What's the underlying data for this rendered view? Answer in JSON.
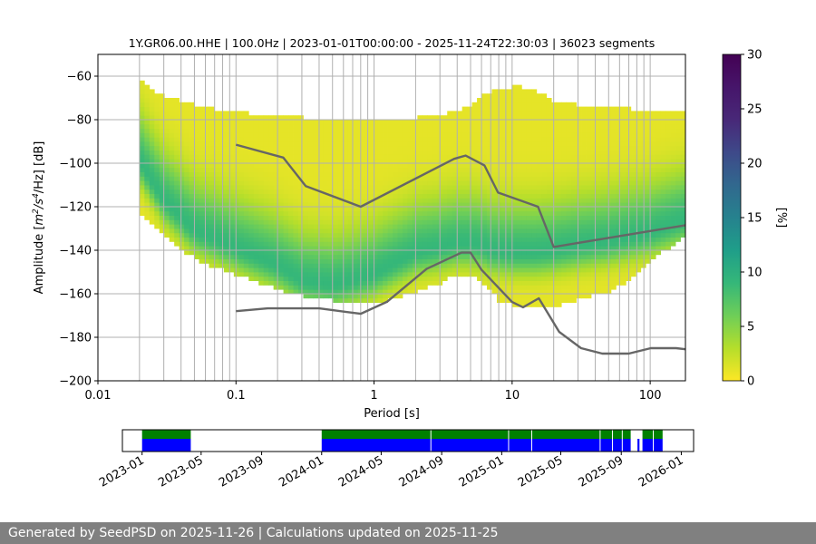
{
  "footer": {
    "text": "Generated by SeedPSD on 2025-11-26 | Calculations updated on 2025-11-25"
  },
  "chart_data": [
    {
      "type": "heatmap",
      "title": "1Y.GR06.00.HHE | 100.0Hz | 2023-01-01T00:00:00 - 2025-11-24T22:30:03 | 36023 segments",
      "xlabel": "Period [s]",
      "ylabel_parts": {
        "prefix": "Amplitude [",
        "m": "m",
        "m_sup": "2",
        "mid": "/s",
        "s_sup": "4",
        "suffix": "/Hz] [dB]"
      },
      "xscale": "log",
      "xlim": [
        0.01,
        180
      ],
      "ylim": [
        -200,
        -50
      ],
      "x_ticks": [
        {
          "value": 0.01,
          "label": "0.01"
        },
        {
          "value": 0.1,
          "label": "0.1"
        },
        {
          "value": 1,
          "label": "1"
        },
        {
          "value": 10,
          "label": "10"
        },
        {
          "value": 100,
          "label": "100"
        }
      ],
      "y_ticks": [
        {
          "value": -60,
          "label": "−60"
        },
        {
          "value": -80,
          "label": "−80"
        },
        {
          "value": -100,
          "label": "−100"
        },
        {
          "value": -120,
          "label": "−120"
        },
        {
          "value": -140,
          "label": "−140"
        },
        {
          "value": -160,
          "label": "−160"
        },
        {
          "value": -180,
          "label": "−180"
        },
        {
          "value": -200,
          "label": "−200"
        }
      ],
      "grid": true,
      "colorbar": {
        "label": "[%]",
        "range": [
          0,
          30
        ],
        "ticks": [
          {
            "value": 0,
            "label": "0"
          },
          {
            "value": 5,
            "label": "5"
          },
          {
            "value": 10,
            "label": "10"
          },
          {
            "value": 15,
            "label": "15"
          },
          {
            "value": 20,
            "label": "20"
          },
          {
            "value": 25,
            "label": "25"
          },
          {
            "value": 30,
            "label": "30"
          }
        ],
        "colormap": "viridis"
      },
      "psd_envelope": {
        "period": [
          0.02,
          0.021,
          0.025,
          0.03,
          0.04,
          0.05,
          0.07,
          0.1,
          0.15,
          0.2,
          0.3,
          0.5,
          0.7,
          1,
          1.5,
          2,
          3,
          4,
          5,
          6,
          7,
          8,
          10,
          12,
          15,
          20,
          30,
          50,
          70,
          100,
          150,
          180
        ],
        "upper_db": [
          -63,
          -64,
          -67,
          -70,
          -72,
          -74,
          -76,
          -77,
          -79,
          -80,
          -80,
          -81,
          -81,
          -81,
          -81,
          -80,
          -79,
          -77,
          -74,
          -70,
          -68,
          -67,
          -66,
          -66,
          -68,
          -72,
          -74,
          -75,
          -76,
          -77,
          -77,
          -77
        ],
        "lower_db": [
          -125,
          -126,
          -129,
          -134,
          -140,
          -145,
          -149,
          -152,
          -156,
          -159,
          -162,
          -164,
          -165,
          -165,
          -163,
          -160,
          -156,
          -152,
          -152,
          -155,
          -160,
          -164,
          -166,
          -167,
          -168,
          -167,
          -164,
          -160,
          -155,
          -146,
          -138,
          -134
        ]
      },
      "mode": {
        "period": [
          0.02,
          0.025,
          0.03,
          0.05,
          0.1,
          0.2,
          0.3,
          0.5,
          0.7,
          1,
          1.5,
          2,
          3,
          4,
          5,
          6,
          7,
          10,
          15,
          20,
          30,
          50,
          100,
          180
        ],
        "db": [
          -100,
          -110,
          -118,
          -132,
          -140,
          -148,
          -155,
          -157,
          -155,
          -152,
          -146,
          -142,
          -140,
          -138,
          -138,
          -139,
          -141,
          -142,
          -142,
          -141,
          -139,
          -137,
          -133,
          -127
        ]
      },
      "noise_models": [
        {
          "name": "NHNM",
          "period": [
            0.1,
            0.22,
            0.32,
            0.8,
            3.8,
            4.6,
            6.3,
            7.9,
            15.4,
            20,
            180
          ],
          "db": [
            -91.5,
            -97.4,
            -110.5,
            -120,
            -98,
            -96.5,
            -101,
            -113.5,
            -120,
            -138.5,
            -128.5
          ]
        },
        {
          "name": "NLNM",
          "period": [
            0.1,
            0.17,
            0.4,
            0.8,
            1.24,
            2.4,
            4.3,
            5,
            6,
            10,
            12,
            15.6,
            21.9,
            31.6,
            45,
            70,
            101,
            154,
            180
          ],
          "db": [
            -168,
            -166.7,
            -166.7,
            -169.2,
            -163.7,
            -148.6,
            -141.1,
            -141.1,
            -149,
            -163.8,
            -166.2,
            -162.1,
            -177.5,
            -185,
            -187.5,
            -187.5,
            -185,
            -185,
            -185.5
          ]
        }
      ]
    },
    {
      "type": "timeline",
      "date_range": [
        "2022-11-22",
        "2026-01-26"
      ],
      "date_ticks": [
        {
          "date": "2023-01-01",
          "label": "2023-01"
        },
        {
          "date": "2023-05-01",
          "label": "2023-05"
        },
        {
          "date": "2023-09-01",
          "label": "2023-09"
        },
        {
          "date": "2024-01-01",
          "label": "2024-01"
        },
        {
          "date": "2024-05-01",
          "label": "2024-05"
        },
        {
          "date": "2024-09-01",
          "label": "2024-09"
        },
        {
          "date": "2025-01-01",
          "label": "2025-01"
        },
        {
          "date": "2025-05-01",
          "label": "2025-05"
        },
        {
          "date": "2025-09-01",
          "label": "2025-09"
        },
        {
          "date": "2026-01-01",
          "label": "2026-01"
        }
      ],
      "series": [
        {
          "name": "data_available",
          "color": "#008000",
          "spans": [
            [
              "2023-01-01",
              "2023-04-10"
            ],
            [
              "2024-01-01",
              "2025-09-20"
            ],
            [
              "2025-10-14",
              "2025-11-24"
            ]
          ]
        },
        {
          "name": "psd_computed",
          "color": "#0000ff",
          "spans": [
            [
              "2023-01-01",
              "2023-04-10"
            ],
            [
              "2024-01-01",
              "2025-09-20"
            ],
            [
              "2025-10-04",
              "2025-10-08"
            ],
            [
              "2025-10-14",
              "2025-11-24"
            ]
          ]
        }
      ],
      "gaps": [
        "2024-08-10",
        "2025-01-15",
        "2025-03-03",
        "2025-07-20",
        "2025-08-14",
        "2025-09-03",
        "2025-11-05"
      ]
    }
  ]
}
